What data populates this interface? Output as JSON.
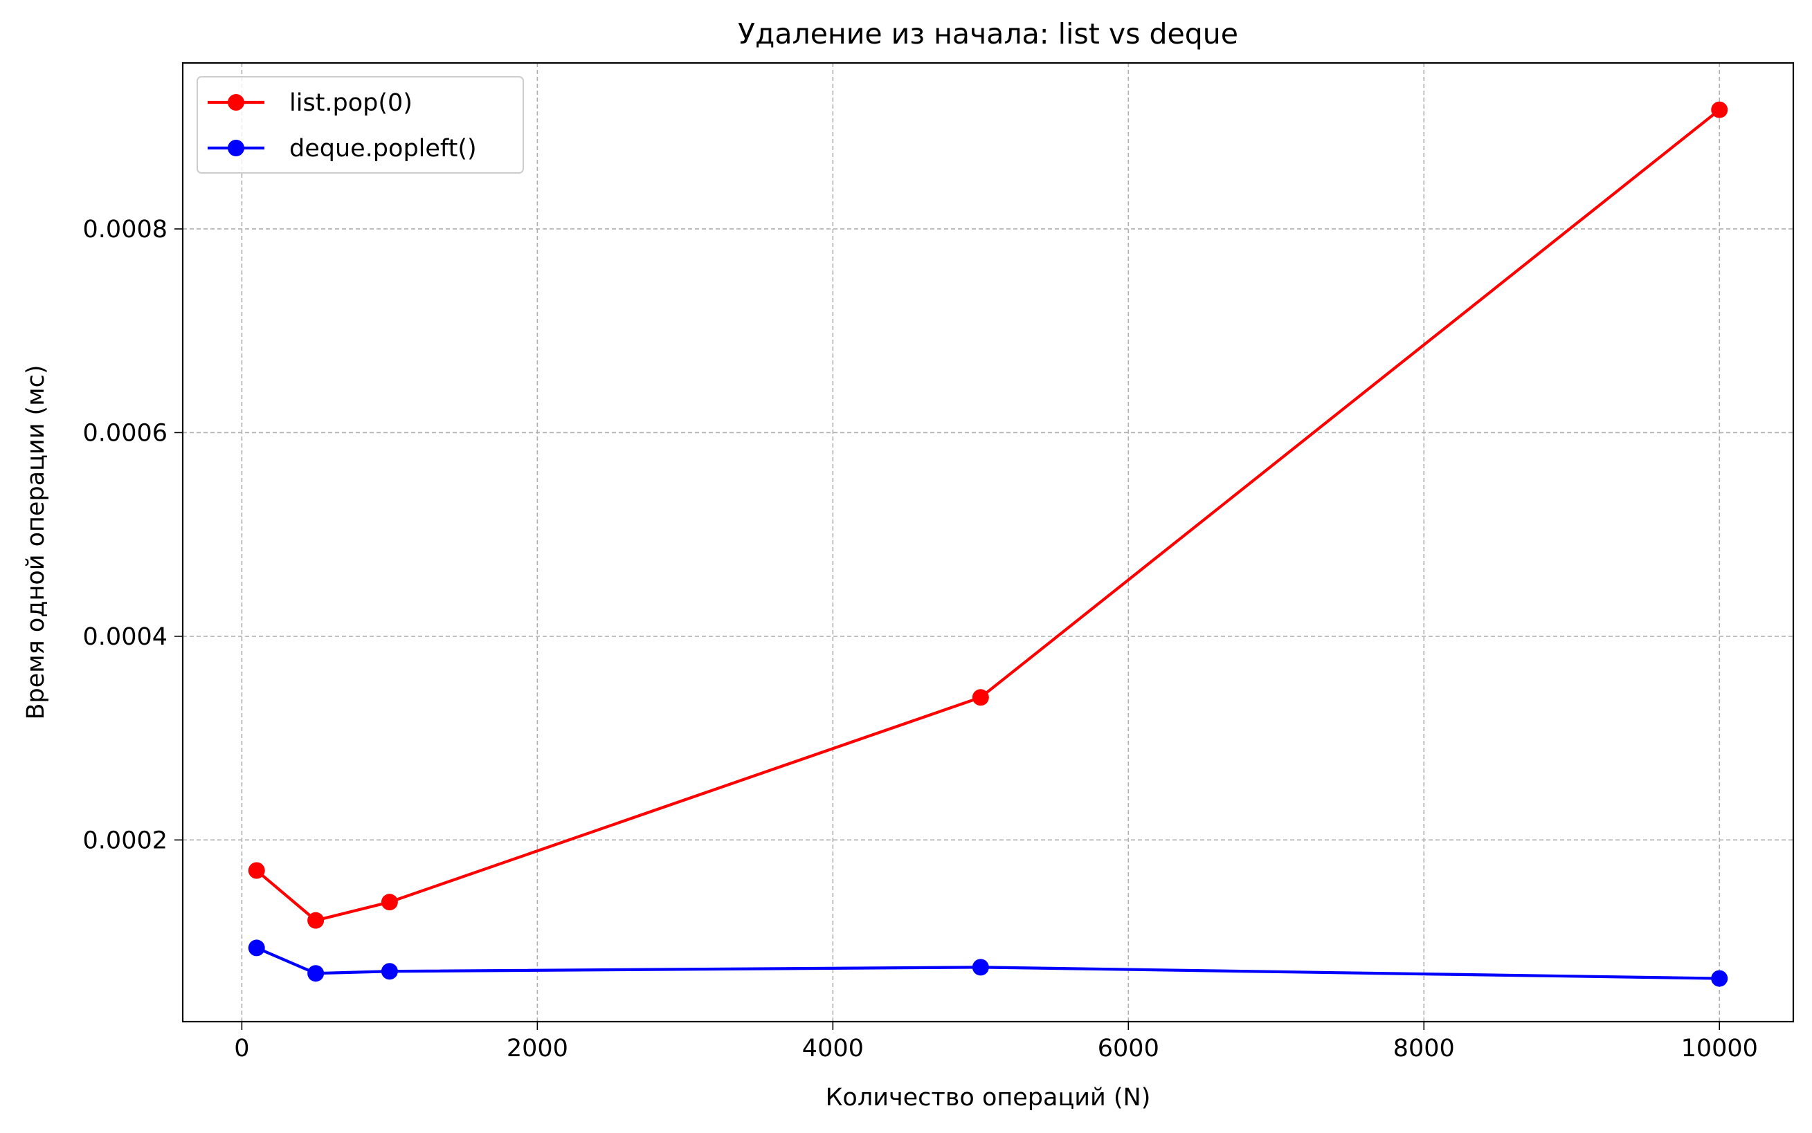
{
  "chart_data": {
    "type": "line",
    "title": "Удаление из начала: list vs deque",
    "xlabel": "Количество операций (N)",
    "ylabel": "Время одной операции (мс)",
    "xlim": [
      -400,
      10500
    ],
    "ylim": [
      2.16e-05,
      0.000963
    ],
    "xticks": [
      {
        "value": 0,
        "label": "0"
      },
      {
        "value": 2000,
        "label": "2000"
      },
      {
        "value": 4000,
        "label": "4000"
      },
      {
        "value": 6000,
        "label": "6000"
      },
      {
        "value": 8000,
        "label": "8000"
      },
      {
        "value": 10000,
        "label": "10000"
      }
    ],
    "yticks": [
      {
        "value": 0.0002,
        "label": "0.0002"
      },
      {
        "value": 0.0004,
        "label": "0.0004"
      },
      {
        "value": 0.0006,
        "label": "0.0006"
      },
      {
        "value": 0.0008,
        "label": "0.0008"
      }
    ],
    "grid": true,
    "legend_position": "top-left",
    "x": [
      100,
      500,
      1000,
      5000,
      10000
    ],
    "series": [
      {
        "name": "list.pop(0)",
        "color": "#ff0000",
        "marker": "circle",
        "values": [
          0.00017,
          0.000121,
          0.000139,
          0.00034,
          0.000917
        ]
      },
      {
        "name": "deque.popleft()",
        "color": "#0000ff",
        "marker": "circle",
        "values": [
          9.4e-05,
          6.9e-05,
          7.1e-05,
          7.5e-05,
          6.4e-05
        ]
      }
    ]
  }
}
